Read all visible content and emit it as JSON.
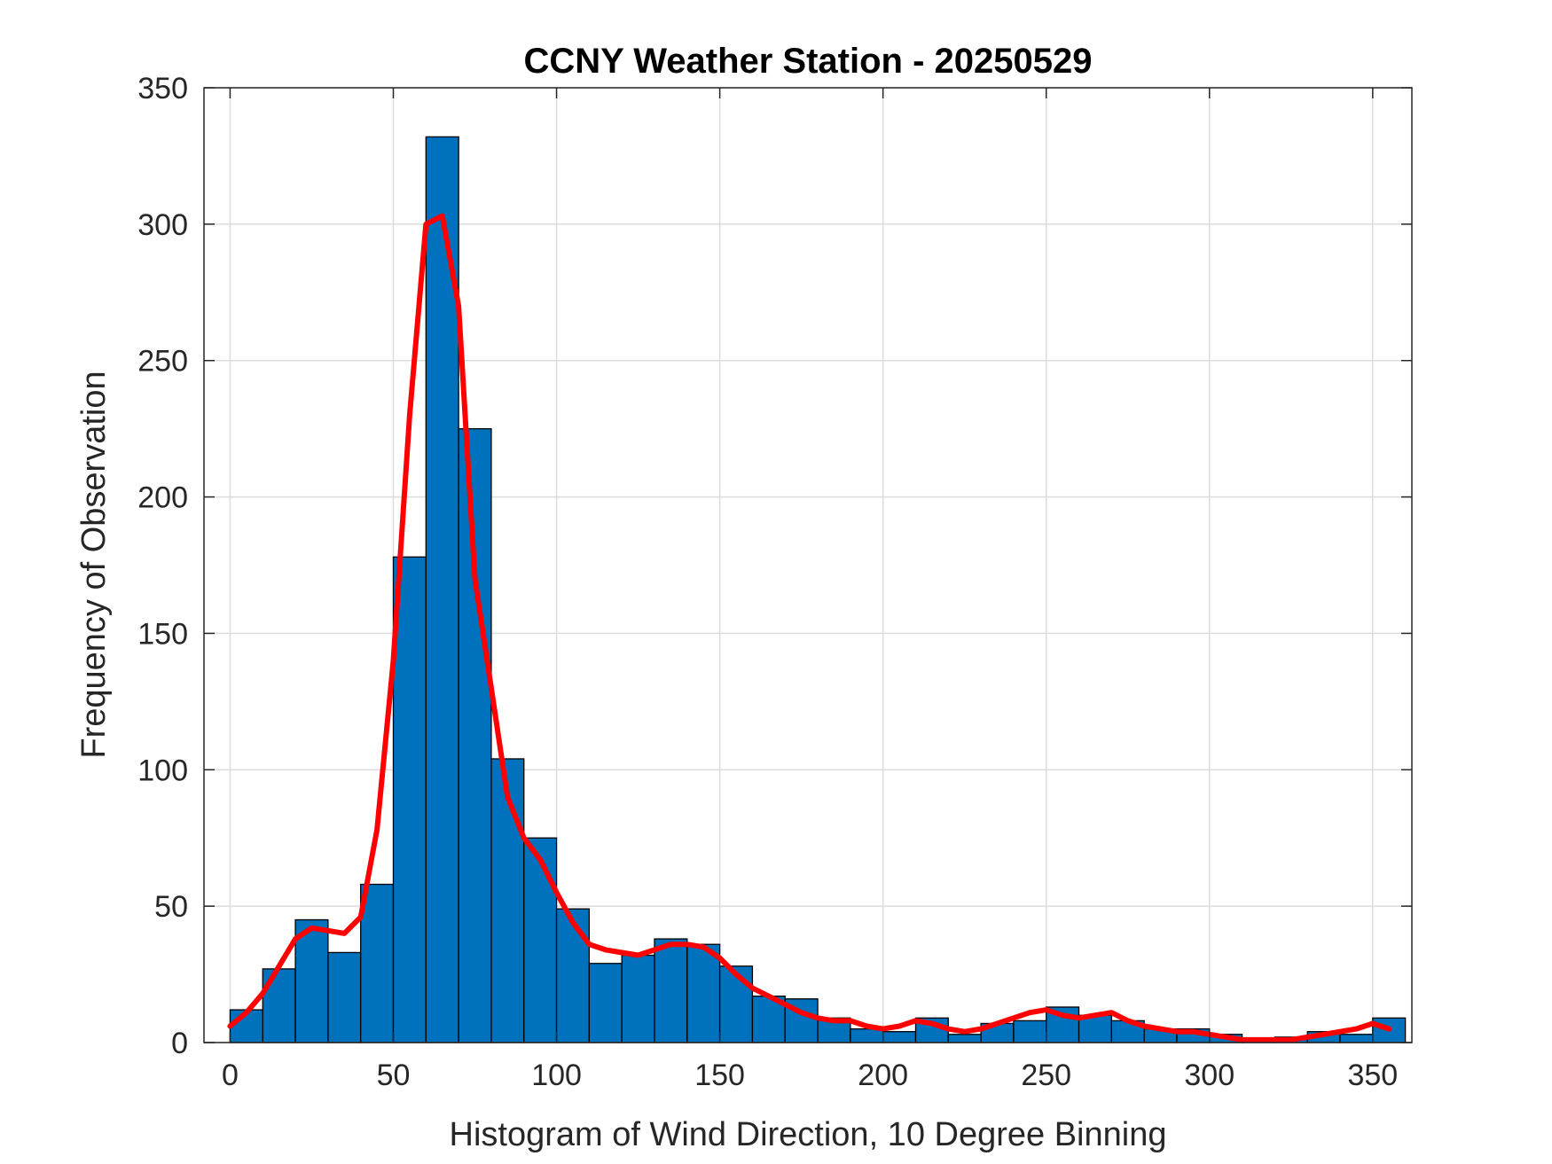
{
  "chart_data": {
    "type": "bar",
    "title": "CCNY Weather Station - 20250529",
    "xlabel": "Histogram of Wind Direction, 10 Degree Binning",
    "ylabel": "Frequency of Observation",
    "xlim": [
      -8,
      362
    ],
    "ylim": [
      0,
      350
    ],
    "xticks": [
      0,
      50,
      100,
      150,
      200,
      250,
      300,
      350
    ],
    "yticks": [
      0,
      50,
      100,
      150,
      200,
      250,
      300,
      350
    ],
    "grid": true,
    "bin_width": 10,
    "bin_edges": [
      0,
      10,
      20,
      30,
      40,
      50,
      60,
      70,
      80,
      90,
      100,
      110,
      120,
      130,
      140,
      150,
      160,
      170,
      180,
      190,
      200,
      210,
      220,
      230,
      240,
      250,
      260,
      270,
      280,
      290,
      300,
      310,
      320,
      330,
      340,
      350,
      360
    ],
    "values": [
      12,
      27,
      45,
      33,
      58,
      178,
      332,
      225,
      104,
      75,
      49,
      29,
      32,
      38,
      36,
      28,
      17,
      16,
      9,
      5,
      4,
      9,
      3,
      7,
      8,
      13,
      10,
      8,
      5,
      5,
      3,
      1,
      2,
      4,
      3,
      9
    ],
    "bar_color": "#0072BD",
    "curve": {
      "color": "#FF0000",
      "x": [
        0,
        5,
        10,
        15,
        20,
        25,
        30,
        35,
        40,
        45,
        50,
        55,
        60,
        65,
        70,
        75,
        80,
        85,
        90,
        95,
        100,
        105,
        110,
        115,
        120,
        125,
        130,
        135,
        140,
        145,
        150,
        155,
        160,
        165,
        170,
        175,
        180,
        185,
        190,
        195,
        200,
        205,
        210,
        215,
        220,
        225,
        230,
        235,
        240,
        245,
        250,
        255,
        260,
        265,
        270,
        275,
        280,
        285,
        290,
        295,
        300,
        305,
        310,
        315,
        320,
        325,
        330,
        335,
        340,
        345,
        350,
        355
      ],
      "y": [
        6,
        11,
        18,
        28,
        38,
        42,
        41,
        40,
        46,
        78,
        140,
        230,
        300,
        303,
        270,
        170,
        130,
        90,
        75,
        67,
        55,
        44,
        36,
        34,
        33,
        32,
        34,
        36,
        36,
        35,
        31,
        25,
        20,
        17,
        14,
        11,
        9,
        8,
        8,
        6,
        5,
        6,
        8,
        7,
        5,
        4,
        5,
        7,
        9,
        11,
        12,
        10,
        9,
        10,
        11,
        8,
        6,
        5,
        4,
        4,
        3,
        2,
        1,
        1,
        1,
        1,
        2,
        3,
        4,
        5,
        7,
        5
      ]
    }
  }
}
